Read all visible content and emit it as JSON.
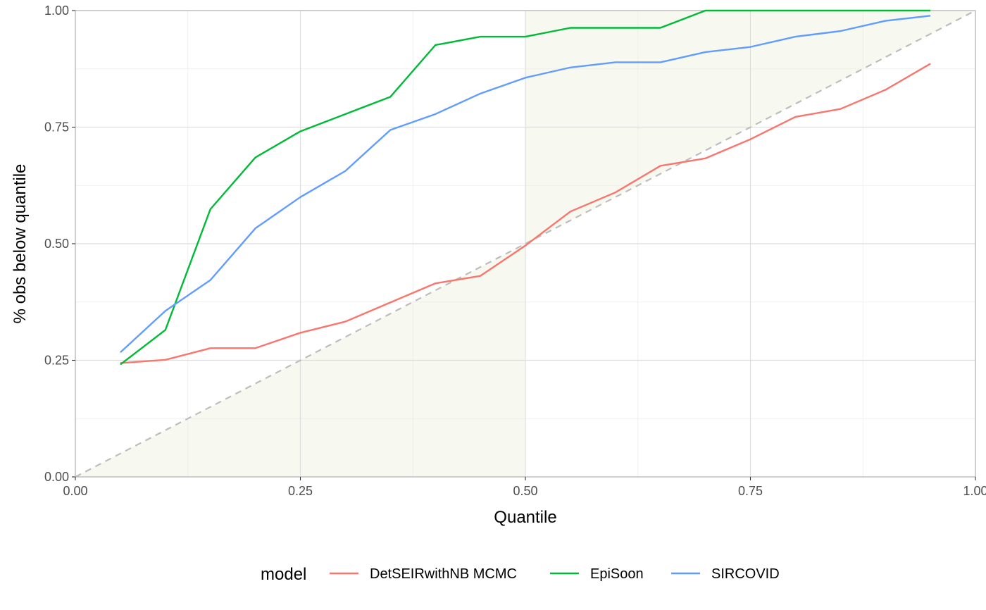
{
  "chart_data": {
    "type": "line",
    "xlabel": "Quantile",
    "ylabel": "% obs below quantile",
    "xlim": [
      0,
      1
    ],
    "ylim": [
      0,
      1
    ],
    "x_ticks": [
      0,
      0.25,
      0.5,
      0.75,
      1
    ],
    "y_ticks": [
      0,
      0.25,
      0.5,
      0.75,
      1
    ],
    "x_tick_labels": [
      "0.00",
      "0.25",
      "0.50",
      "0.75",
      "1.00"
    ],
    "y_tick_labels": [
      "0.00",
      "0.25",
      "0.50",
      "0.75",
      "1.00"
    ],
    "grid": true,
    "legend_title": "model",
    "legend_position": "bottom",
    "reference_line": {
      "type": "dashed",
      "from": [
        0,
        0
      ],
      "to": [
        1,
        1
      ],
      "color": "#bdbdbd"
    },
    "shaded_regions": [
      {
        "from_x": 0,
        "to_x": 0.5,
        "below_diagonal": true,
        "color": "#f7f8ef"
      },
      {
        "from_x": 0.5,
        "to_x": 1,
        "above_diagonal": true,
        "color": "#f7f8ef"
      }
    ],
    "x": [
      0.05,
      0.1,
      0.15,
      0.2,
      0.25,
      0.3,
      0.35,
      0.4,
      0.45,
      0.5,
      0.55,
      0.6,
      0.65,
      0.7,
      0.75,
      0.8,
      0.85,
      0.9,
      0.95
    ],
    "series": [
      {
        "name": "DetSEIRwithNB MCMC",
        "color": "#F8766D",
        "values": [
          0.244,
          0.251,
          0.276,
          0.276,
          0.309,
          0.333,
          0.374,
          0.415,
          0.431,
          0.496,
          0.569,
          0.61,
          0.667,
          0.683,
          0.724,
          0.772,
          0.789,
          0.83,
          0.886
        ]
      },
      {
        "name": "EpiSoon",
        "color": "#00BA38",
        "values": [
          0.241,
          0.315,
          0.574,
          0.685,
          0.741,
          0.778,
          0.815,
          0.926,
          0.944,
          0.944,
          0.963,
          0.963,
          0.963,
          1.0,
          1.0,
          1.0,
          1.0,
          1.0,
          1.0
        ]
      },
      {
        "name": "SIRCOVID",
        "color": "#619CFF",
        "values": [
          0.267,
          0.356,
          0.422,
          0.533,
          0.6,
          0.656,
          0.744,
          0.778,
          0.822,
          0.856,
          0.878,
          0.889,
          0.889,
          0.911,
          0.922,
          0.944,
          0.956,
          0.978,
          0.989
        ]
      }
    ]
  }
}
